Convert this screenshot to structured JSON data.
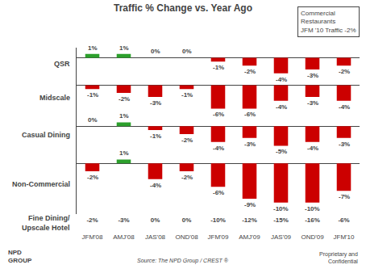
{
  "chart_data": [
    {
      "type": "bar",
      "title": "Traffic % Change vs. Year Ago",
      "annotations": [
        "Commercial\nRestaurants\nJFM '10 Traffic -2%",
        "Source: The NPD Group / CREST ®",
        "Proprietary and\nConfidential",
        "NPD\nGROUP"
      ],
      "ylabel": "QSR",
      "categories": [
        "JFM'08",
        "AMJ'08",
        "JAS'08",
        "OND'08",
        "JFM'09",
        "AMJ'09",
        "JAS'09",
        "OND'09",
        "JFM'10"
      ],
      "values": [
        1,
        1,
        0,
        0,
        -1,
        -2,
        -4,
        -3,
        -2
      ],
      "value_labels": [
        "1%",
        "1%",
        "0%",
        "0%",
        "-1%",
        "-2%",
        "-4%",
        "-3%",
        "-2%"
      ],
      "colors": [
        "#2ca02c",
        "#2ca02c",
        "#cc0000",
        "#cc0000",
        "#cc0000",
        "#cc0000",
        "#cc0000",
        "#cc0000",
        "#cc0000"
      ],
      "ylim": [
        -5.5,
        2.5
      ],
      "data_labels": true,
      "tick_labels": false
    },
    {
      "type": "bar",
      "ylabel": "Midscale",
      "categories": [
        "JFM'08",
        "AMJ'08",
        "JAS'08",
        "OND'08",
        "JFM'09",
        "AMJ'09",
        "JAS'09",
        "OND'09",
        "JFM'10"
      ],
      "values": [
        -1,
        -2,
        -3,
        -1,
        -6,
        -6,
        -4,
        -3,
        -4
      ],
      "value_labels": [
        "-1%",
        "-2%",
        "-3%",
        "-1%",
        "-6%",
        "-6%",
        "-4%",
        "-3%",
        "-4%"
      ],
      "colors": [
        "#cc0000",
        "#cc0000",
        "#cc0000",
        "#cc0000",
        "#cc0000",
        "#cc0000",
        "#cc0000",
        "#cc0000",
        "#cc0000"
      ],
      "ylim": [
        -8.0,
        1.5
      ],
      "data_labels": true,
      "tick_labels": false
    },
    {
      "type": "bar",
      "ylabel": "Casual Dining",
      "categories": [
        "JFM'08",
        "AMJ'08",
        "JAS'08",
        "OND'08",
        "JFM'09",
        "AMJ'09",
        "JAS'09",
        "OND'09",
        "JFM'10"
      ],
      "values": [
        0,
        1,
        -1,
        -2,
        -4,
        -3,
        -5,
        -4,
        -3
      ],
      "value_labels": [
        "0%",
        "1%",
        "-1%",
        "-2%",
        "-4%",
        "-3%",
        "-5%",
        "-4%",
        "-3%"
      ],
      "colors": [
        "#cc0000",
        "#2ca02c",
        "#cc0000",
        "#cc0000",
        "#cc0000",
        "#cc0000",
        "#cc0000",
        "#cc0000",
        "#cc0000"
      ],
      "ylim": [
        -7.0,
        2.5
      ],
      "data_labels": true,
      "tick_labels": false
    },
    {
      "type": "bar",
      "ylabel": "Non-Commercial",
      "categories": [
        "JFM'08",
        "AMJ'08",
        "JAS'08",
        "OND'08",
        "JFM'09",
        "AMJ'09",
        "JAS'09",
        "OND'09",
        "JFM'10"
      ],
      "values": [
        -2,
        1,
        -4,
        -2,
        -6,
        -9,
        -10,
        -10,
        -7
      ],
      "value_labels": [
        "-2%",
        "1%",
        "-4%",
        "-2%",
        "-6%",
        "-9%",
        "-10%",
        "-10%",
        "-7%"
      ],
      "colors": [
        "#cc0000",
        "#2ca02c",
        "#cc0000",
        "#cc0000",
        "#cc0000",
        "#cc0000",
        "#cc0000",
        "#cc0000",
        "#cc0000"
      ],
      "ylim": [
        -13.0,
        2.5
      ],
      "data_labels": true,
      "tick_labels": false
    },
    {
      "type": "text",
      "ylabel": "Fine Dining/\nUpscale Hotel",
      "categories": [
        "JFM'08",
        "AMJ'08",
        "JAS'08",
        "OND'08",
        "JFM'09",
        "AMJ'09",
        "JAS'09",
        "OND'09",
        "JFM'10"
      ],
      "values": [
        -2,
        -3,
        0,
        0,
        -10,
        -12,
        -15,
        -16,
        -6
      ],
      "value_labels": [
        "-2%",
        "-3%",
        "0%",
        "0%",
        "-10%",
        "-12%",
        "-15%",
        "-16%",
        "-6%"
      ],
      "data_labels": true,
      "tick_labels": "x"
    }
  ]
}
